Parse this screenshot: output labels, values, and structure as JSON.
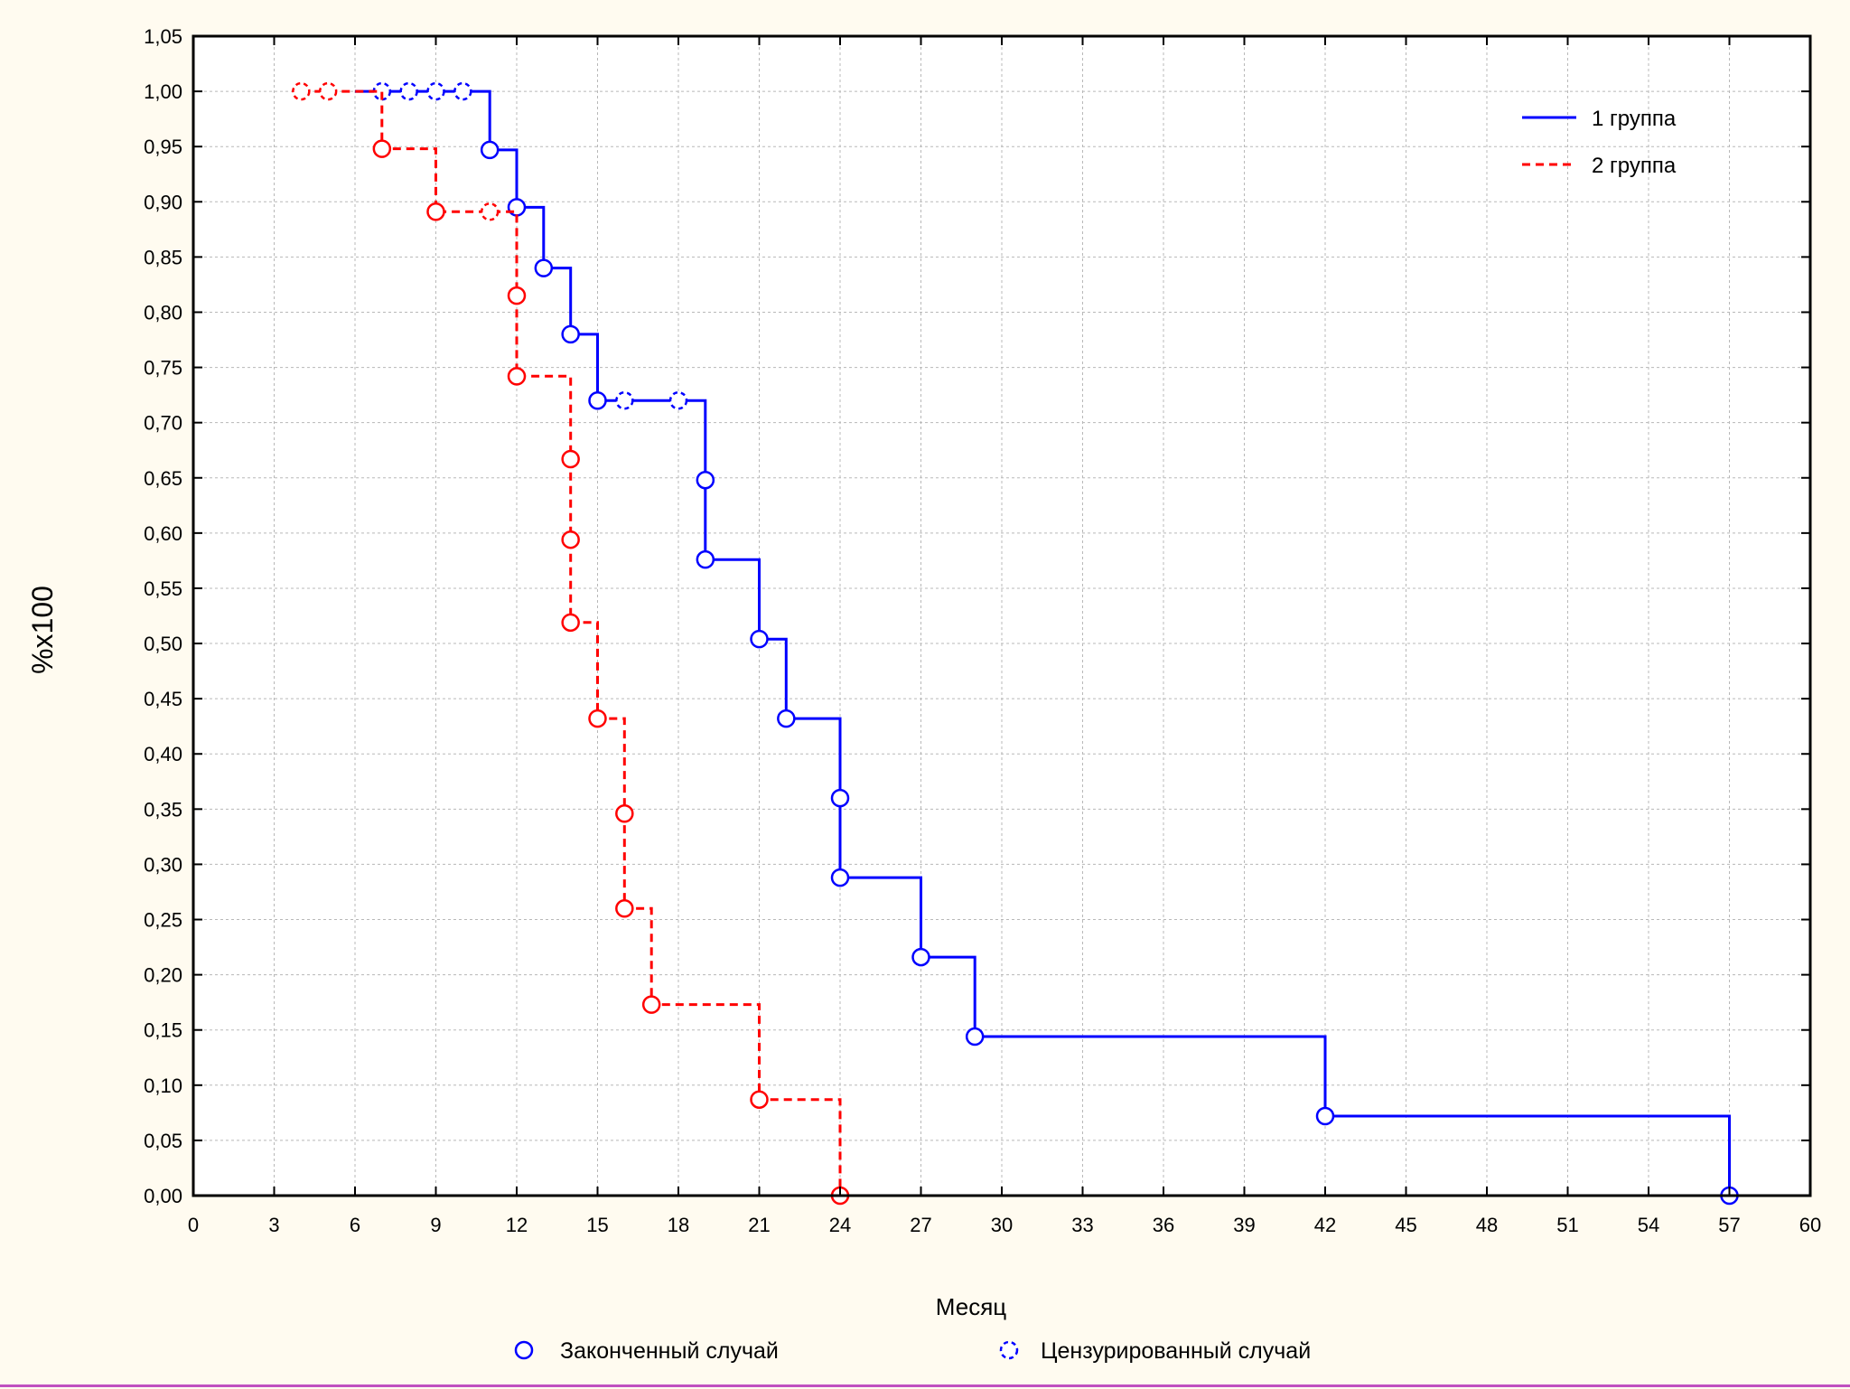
{
  "chart_data": {
    "type": "line",
    "subtype": "kaplan-meier",
    "title": "",
    "xlabel": "Месяц",
    "ylabel": "%x100",
    "xlim": [
      0,
      60
    ],
    "ylim": [
      0,
      1.05
    ],
    "x_ticks": [
      "0",
      "3",
      "6",
      "9",
      "12",
      "15",
      "18",
      "21",
      "24",
      "27",
      "30",
      "33",
      "36",
      "39",
      "42",
      "45",
      "48",
      "51",
      "54",
      "57",
      "60"
    ],
    "y_ticks": [
      "0,00",
      "0,05",
      "0,10",
      "0,15",
      "0,20",
      "0,25",
      "0,30",
      "0,35",
      "0,40",
      "0,45",
      "0,50",
      "0,55",
      "0,60",
      "0,65",
      "0,70",
      "0,75",
      "0,80",
      "0,85",
      "0,90",
      "0,95",
      "1,00",
      "1,05"
    ],
    "grid": true,
    "legend_position": "top-right",
    "series": [
      {
        "name": "1 группа",
        "color": "#0000ff",
        "line_style": "solid",
        "steps": [
          [
            6,
            1.0
          ],
          [
            11,
            1.0
          ],
          [
            11,
            0.947
          ],
          [
            12,
            0.947
          ],
          [
            12,
            0.895
          ],
          [
            13,
            0.895
          ],
          [
            13,
            0.84
          ],
          [
            14,
            0.84
          ],
          [
            14,
            0.78
          ],
          [
            15,
            0.78
          ],
          [
            15,
            0.72
          ],
          [
            19,
            0.72
          ],
          [
            19,
            0.648
          ],
          [
            19,
            0.576
          ],
          [
            21,
            0.576
          ],
          [
            21,
            0.504
          ],
          [
            22,
            0.504
          ],
          [
            22,
            0.432
          ],
          [
            24,
            0.432
          ],
          [
            24,
            0.36
          ],
          [
            24,
            0.288
          ],
          [
            27,
            0.288
          ],
          [
            27,
            0.216
          ],
          [
            29,
            0.216
          ],
          [
            29,
            0.144
          ],
          [
            42,
            0.144
          ],
          [
            42,
            0.072
          ],
          [
            57,
            0.072
          ],
          [
            57,
            0.0
          ]
        ],
        "events": [
          [
            11,
            0.947
          ],
          [
            12,
            0.895
          ],
          [
            13,
            0.84
          ],
          [
            14,
            0.78
          ],
          [
            15,
            0.72
          ],
          [
            19,
            0.648
          ],
          [
            19,
            0.576
          ],
          [
            21,
            0.504
          ],
          [
            22,
            0.432
          ],
          [
            24,
            0.36
          ],
          [
            24,
            0.288
          ],
          [
            27,
            0.216
          ],
          [
            29,
            0.144
          ],
          [
            42,
            0.072
          ],
          [
            57,
            0.0
          ]
        ],
        "censored": [
          [
            7,
            1.0
          ],
          [
            8,
            1.0
          ],
          [
            9,
            1.0
          ],
          [
            10,
            1.0
          ],
          [
            16,
            0.72
          ],
          [
            18,
            0.72
          ]
        ]
      },
      {
        "name": "2 группа",
        "color": "#ff0000",
        "line_style": "dashed",
        "steps": [
          [
            4,
            1.0
          ],
          [
            7,
            1.0
          ],
          [
            7,
            0.948
          ],
          [
            9,
            0.948
          ],
          [
            9,
            0.891
          ],
          [
            12,
            0.891
          ],
          [
            12,
            0.815
          ],
          [
            12,
            0.742
          ],
          [
            14,
            0.742
          ],
          [
            14,
            0.667
          ],
          [
            14,
            0.594
          ],
          [
            14,
            0.519
          ],
          [
            15,
            0.519
          ],
          [
            15,
            0.432
          ],
          [
            16,
            0.432
          ],
          [
            16,
            0.346
          ],
          [
            16,
            0.26
          ],
          [
            17,
            0.26
          ],
          [
            17,
            0.173
          ],
          [
            21,
            0.173
          ],
          [
            21,
            0.087
          ],
          [
            24,
            0.087
          ],
          [
            24,
            0.0
          ]
        ],
        "events": [
          [
            7,
            0.948
          ],
          [
            9,
            0.891
          ],
          [
            12,
            0.815
          ],
          [
            12,
            0.742
          ],
          [
            14,
            0.667
          ],
          [
            14,
            0.594
          ],
          [
            14,
            0.519
          ],
          [
            15,
            0.432
          ],
          [
            16,
            0.346
          ],
          [
            16,
            0.26
          ],
          [
            17,
            0.173
          ],
          [
            21,
            0.087
          ],
          [
            24,
            0.0
          ]
        ],
        "censored": [
          [
            4,
            1.0
          ],
          [
            5,
            1.0
          ],
          [
            11,
            0.891
          ]
        ]
      }
    ],
    "marker_legend": {
      "completed": "Законченный случай",
      "censored": "Цензурированный случай"
    }
  }
}
